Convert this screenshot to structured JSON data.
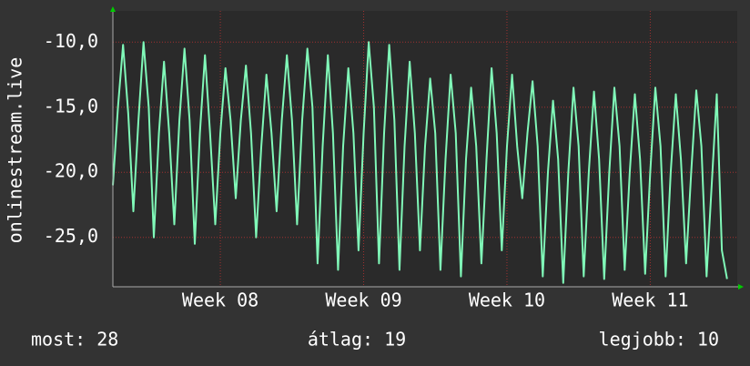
{
  "chart_data": {
    "type": "line",
    "y_label": "onlinestream.live",
    "x": [
      0,
      0.25,
      0.5,
      0.75,
      1,
      1.25,
      1.5,
      1.75,
      2,
      2.25,
      2.5,
      2.75,
      3,
      3.25,
      3.5,
      3.75,
      4,
      4.25,
      4.5,
      4.75,
      5,
      5.25,
      5.5,
      5.75,
      6,
      6.25,
      6.5,
      6.75,
      7,
      7.25,
      7.5,
      7.75,
      8,
      8.25,
      8.5,
      8.75,
      9,
      9.25,
      9.5,
      9.75,
      10,
      10.25,
      10.5,
      10.75,
      11,
      11.25,
      11.5,
      11.75,
      12,
      12.25,
      12.5,
      12.75,
      13,
      13.25,
      13.5,
      13.75,
      14,
      14.25,
      14.5,
      14.75,
      15,
      15.25,
      15.5,
      15.75,
      16,
      16.25,
      16.5,
      16.75,
      17,
      17.25,
      17.5,
      17.75,
      18,
      18.25,
      18.5,
      18.75,
      19,
      19.25,
      19.5,
      19.75,
      20,
      20.25,
      20.5,
      20.75,
      21,
      21.25,
      21.5,
      21.75,
      22,
      22.25,
      22.5,
      22.75,
      23,
      23.25,
      23.5,
      23.75,
      24,
      24.25,
      24.5,
      24.75,
      25,
      25.25,
      25.5,
      25.75,
      26,
      26.25,
      26.5,
      26.75,
      27,
      27.25,
      27.5,
      27.75,
      28,
      28.25,
      28.5,
      28.75,
      29,
      29.25,
      29.5,
      29.75,
      30
    ],
    "series": [
      {
        "name": "onlinestream.live",
        "color": "#80f8b8",
        "values": [
          -21,
          -15,
          -10.2,
          -15.5,
          -23,
          -16,
          -10,
          -15,
          -25,
          -17,
          -11.5,
          -17,
          -24,
          -16,
          -10.5,
          -16,
          -25.5,
          -17,
          -11,
          -17,
          -24,
          -17,
          -12,
          -16,
          -22,
          -16,
          -11.8,
          -17,
          -25,
          -18,
          -12.5,
          -17,
          -23,
          -16,
          -11,
          -16,
          -24,
          -16,
          -10.5,
          -15,
          -27,
          -18,
          -11,
          -17,
          -27.5,
          -18,
          -12,
          -17,
          -26,
          -17,
          -10,
          -15,
          -27,
          -17,
          -10.2,
          -16,
          -27.5,
          -18,
          -11.5,
          -17,
          -26,
          -18,
          -12.8,
          -17,
          -27.5,
          -19,
          -12.5,
          -17,
          -28,
          -19,
          -13.5,
          -18,
          -27,
          -19,
          -12,
          -17,
          -26,
          -18,
          -12.5,
          -18,
          -22,
          -17,
          -13,
          -18,
          -28,
          -20,
          -14.5,
          -19,
          -28.5,
          -20,
          -13.5,
          -18,
          -28,
          -20,
          -13.8,
          -19,
          -28.2,
          -20,
          -13.5,
          -18,
          -27.5,
          -20,
          -14,
          -19,
          -27.8,
          -20,
          -13.5,
          -18,
          -28,
          -20,
          -14,
          -19,
          -27,
          -20,
          -13.7,
          -18,
          -28,
          -21,
          -14,
          -26,
          -28.2
        ]
      }
    ],
    "xlim": [
      0,
      30.5
    ],
    "xticks": [
      {
        "value": 5.25,
        "label": "Week 08"
      },
      {
        "value": 12.25,
        "label": "Week 09"
      },
      {
        "value": 19.25,
        "label": "Week 10"
      },
      {
        "value": 26.25,
        "label": "Week 11"
      }
    ],
    "ylim": [
      -28.8,
      -7.6
    ],
    "yticks": [
      {
        "value": -25,
        "label": "-25,0"
      },
      {
        "value": -20,
        "label": "-20,0"
      },
      {
        "value": -15,
        "label": "-15,0"
      },
      {
        "value": -10,
        "label": "-10,0"
      }
    ],
    "grid": true,
    "footer": [
      "most: 28",
      "átlag: 19",
      "legjobb: 10"
    ]
  }
}
